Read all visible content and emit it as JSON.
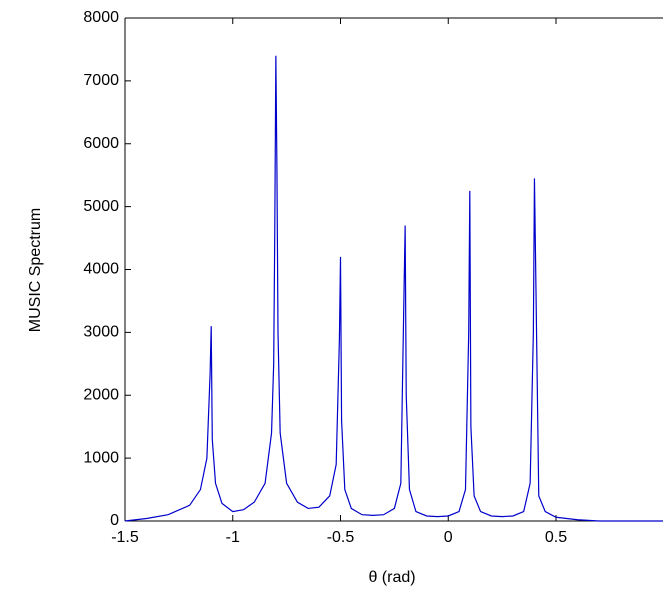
{
  "chart_data": {
    "type": "line",
    "xlabel": "θ (rad)",
    "ylabel": "MUSIC Spectrum",
    "x": [
      -1.5,
      -1.4,
      -1.3,
      -1.2,
      -1.15,
      -1.12,
      -1.105,
      -1.1,
      -1.095,
      -1.08,
      -1.05,
      -1.0,
      -0.95,
      -0.9,
      -0.85,
      -0.82,
      -0.81,
      -0.805,
      -0.8,
      -0.795,
      -0.79,
      -0.78,
      -0.75,
      -0.7,
      -0.65,
      -0.6,
      -0.55,
      -0.52,
      -0.505,
      -0.5,
      -0.495,
      -0.48,
      -0.45,
      -0.4,
      -0.35,
      -0.3,
      -0.25,
      -0.22,
      -0.205,
      -0.2,
      -0.195,
      -0.18,
      -0.15,
      -0.1,
      -0.05,
      0,
      0.05,
      0.08,
      0.095,
      0.1,
      0.105,
      0.12,
      0.15,
      0.2,
      0.25,
      0.3,
      0.35,
      0.38,
      0.395,
      0.4,
      0.405,
      0.42,
      0.45,
      0.5,
      0.6,
      0.7,
      0.8,
      1.0
    ],
    "values": [
      0,
      40,
      100,
      250,
      500,
      1000,
      2350,
      3100,
      1300,
      600,
      280,
      150,
      180,
      300,
      600,
      1400,
      2500,
      4600,
      7400,
      5600,
      3000,
      1400,
      600,
      300,
      200,
      220,
      400,
      900,
      2900,
      4200,
      1600,
      500,
      200,
      100,
      90,
      100,
      200,
      600,
      3700,
      4700,
      2000,
      500,
      150,
      80,
      70,
      80,
      150,
      500,
      3000,
      5250,
      1500,
      400,
      150,
      80,
      70,
      80,
      150,
      600,
      3000,
      5450,
      4200,
      400,
      150,
      60,
      20,
      0,
      0,
      0
    ],
    "color": "#0000cc",
    "xlim": [
      -1.5,
      1.0
    ],
    "xticks": [
      -1.5,
      -1,
      -0.5,
      0,
      0.5
    ],
    "ylim": [
      0,
      8000
    ],
    "yticks": [
      0,
      1000,
      2000,
      3000,
      4000,
      5000,
      6000,
      7000,
      8000
    ],
    "grid": false
  }
}
